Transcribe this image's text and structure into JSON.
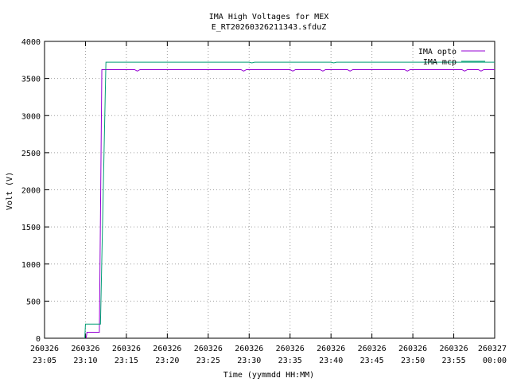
{
  "chart_data": {
    "type": "line",
    "title": "IMA High Voltages for MEX",
    "subtitle": "E_RT20260326211343.sfduZ",
    "xlabel": "Time (yymmdd HH:MM)",
    "ylabel": "Volt (V)",
    "xlim": [
      "2026-03-26 23:05",
      "2026-03-27 00:00"
    ],
    "ylim": [
      0,
      4000
    ],
    "grid": true,
    "legend_position": "top-right",
    "y_ticks": [
      0,
      500,
      1000,
      1500,
      2000,
      2500,
      3000,
      3500,
      4000
    ],
    "x_ticks": [
      {
        "at": "2026-03-26 23:05",
        "line1": "260326",
        "line2": "23:05"
      },
      {
        "at": "2026-03-26 23:10",
        "line1": "260326",
        "line2": "23:10"
      },
      {
        "at": "2026-03-26 23:15",
        "line1": "260326",
        "line2": "23:15"
      },
      {
        "at": "2026-03-26 23:20",
        "line1": "260326",
        "line2": "23:20"
      },
      {
        "at": "2026-03-26 23:25",
        "line1": "260326",
        "line2": "23:25"
      },
      {
        "at": "2026-03-26 23:30",
        "line1": "260326",
        "line2": "23:30"
      },
      {
        "at": "2026-03-26 23:35",
        "line1": "260326",
        "line2": "23:35"
      },
      {
        "at": "2026-03-26 23:40",
        "line1": "260326",
        "line2": "23:40"
      },
      {
        "at": "2026-03-26 23:45",
        "line1": "260326",
        "line2": "23:45"
      },
      {
        "at": "2026-03-26 23:50",
        "line1": "260326",
        "line2": "23:50"
      },
      {
        "at": "2026-03-26 23:55",
        "line1": "260326",
        "line2": "23:55"
      },
      {
        "at": "2026-03-27 00:00",
        "line1": "260327",
        "line2": "00:00"
      }
    ],
    "series": [
      {
        "name": "IMA opto",
        "color": "#9400d3",
        "points": [
          {
            "x": "2026-03-26 23:10:05",
            "y": 0
          },
          {
            "x": "2026-03-26 23:10:11",
            "y": 80
          },
          {
            "x": "2026-03-26 23:11:42",
            "y": 80
          },
          {
            "x": "2026-03-26 23:12:00",
            "y": 3620
          },
          {
            "x": "2026-03-26 23:16:00",
            "y": 3620
          },
          {
            "x": "2026-03-26 23:16:20",
            "y": 3600
          },
          {
            "x": "2026-03-26 23:16:40",
            "y": 3620
          },
          {
            "x": "2026-03-26 23:29:00",
            "y": 3620
          },
          {
            "x": "2026-03-26 23:29:20",
            "y": 3600
          },
          {
            "x": "2026-03-26 23:29:40",
            "y": 3620
          },
          {
            "x": "2026-03-26 23:35:00",
            "y": 3620
          },
          {
            "x": "2026-03-26 23:35:20",
            "y": 3600
          },
          {
            "x": "2026-03-26 23:35:40",
            "y": 3620
          },
          {
            "x": "2026-03-26 23:38:40",
            "y": 3620
          },
          {
            "x": "2026-03-26 23:39:00",
            "y": 3600
          },
          {
            "x": "2026-03-26 23:39:20",
            "y": 3620
          },
          {
            "x": "2026-03-26 23:42:00",
            "y": 3620
          },
          {
            "x": "2026-03-26 23:42:20",
            "y": 3600
          },
          {
            "x": "2026-03-26 23:42:40",
            "y": 3620
          },
          {
            "x": "2026-03-26 23:49:00",
            "y": 3620
          },
          {
            "x": "2026-03-26 23:49:20",
            "y": 3600
          },
          {
            "x": "2026-03-26 23:49:40",
            "y": 3620
          },
          {
            "x": "2026-03-26 23:56:00",
            "y": 3620
          },
          {
            "x": "2026-03-26 23:56:20",
            "y": 3600
          },
          {
            "x": "2026-03-26 23:56:40",
            "y": 3620
          },
          {
            "x": "2026-03-26 23:58:00",
            "y": 3620
          },
          {
            "x": "2026-03-26 23:58:20",
            "y": 3600
          },
          {
            "x": "2026-03-26 23:58:40",
            "y": 3620
          },
          {
            "x": "2026-03-27 00:00:00",
            "y": 3620
          }
        ]
      },
      {
        "name": "IMA mcp",
        "color": "#009e73",
        "points": [
          {
            "x": "2026-03-26 23:09:55",
            "y": 0
          },
          {
            "x": "2026-03-26 23:10:00",
            "y": 190
          },
          {
            "x": "2026-03-26 23:11:50",
            "y": 190
          },
          {
            "x": "2026-03-26 23:12:30",
            "y": 3720
          },
          {
            "x": "2026-03-26 23:30:00",
            "y": 3720
          },
          {
            "x": "2026-03-26 23:30:20",
            "y": 3710
          },
          {
            "x": "2026-03-26 23:30:40",
            "y": 3720
          },
          {
            "x": "2026-03-26 23:40:00",
            "y": 3720
          },
          {
            "x": "2026-03-26 23:40:20",
            "y": 3710
          },
          {
            "x": "2026-03-26 23:40:40",
            "y": 3720
          },
          {
            "x": "2026-03-27 00:00:00",
            "y": 3720
          }
        ]
      }
    ]
  }
}
